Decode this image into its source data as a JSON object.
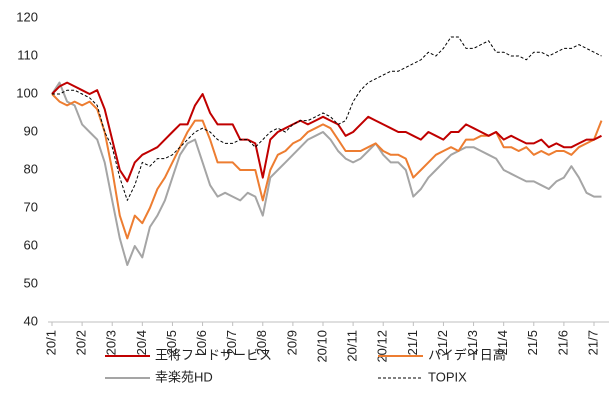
{
  "chart_data": {
    "type": "line",
    "categories": [
      "20/1",
      null,
      null,
      null,
      "20/2",
      null,
      null,
      null,
      "20/3",
      null,
      null,
      null,
      "20/4",
      null,
      null,
      null,
      "20/5",
      null,
      null,
      null,
      "20/6",
      null,
      null,
      null,
      "20/7",
      null,
      null,
      null,
      "20/8",
      null,
      null,
      null,
      "20/9",
      null,
      null,
      null,
      "20/10",
      null,
      null,
      null,
      "20/11",
      null,
      null,
      null,
      "20/12",
      null,
      null,
      null,
      "21/1",
      null,
      null,
      null,
      "21/2",
      null,
      null,
      null,
      "21/3",
      null,
      null,
      null,
      "21/4",
      null,
      null,
      null,
      "21/5",
      null,
      null,
      null,
      "21/6",
      null,
      null,
      null,
      "21/7",
      null
    ],
    "series": [
      {
        "name": "王将フードサービス",
        "color": "#c00000",
        "dash": false,
        "values": [
          100,
          102,
          103,
          102,
          101,
          100,
          101,
          96,
          88,
          80,
          77,
          82,
          84,
          85,
          86,
          88,
          90,
          92,
          92,
          97,
          100,
          95,
          92,
          92,
          92,
          88,
          88,
          87,
          78,
          88,
          90,
          91,
          92,
          93,
          92,
          93,
          94,
          93,
          92,
          89,
          90,
          92,
          94,
          93,
          92,
          91,
          90,
          90,
          89,
          88,
          90,
          89,
          88,
          90,
          90,
          92,
          91,
          90,
          89,
          90,
          88,
          89,
          88,
          87,
          87,
          88,
          86,
          87,
          86,
          86,
          87,
          88,
          88,
          89
        ]
      },
      {
        "name": "ハイデイ日高",
        "color": "#ed7d31",
        "dash": false,
        "values": [
          100,
          98,
          97,
          98,
          97,
          98,
          96,
          90,
          80,
          68,
          62,
          68,
          66,
          70,
          75,
          78,
          82,
          86,
          90,
          93,
          93,
          88,
          82,
          82,
          82,
          80,
          80,
          80,
          72,
          80,
          84,
          85,
          87,
          88,
          90,
          91,
          92,
          91,
          88,
          85,
          85,
          85,
          86,
          87,
          85,
          84,
          84,
          83,
          78,
          80,
          82,
          84,
          85,
          86,
          85,
          88,
          88,
          89,
          89,
          90,
          86,
          86,
          85,
          86,
          84,
          85,
          84,
          85,
          85,
          84,
          86,
          87,
          88,
          93
        ]
      },
      {
        "name": "幸楽苑HD",
        "color": "#a5a5a5",
        "dash": false,
        "values": [
          100,
          103,
          98,
          97,
          92,
          90,
          88,
          82,
          72,
          62,
          55,
          60,
          57,
          65,
          68,
          72,
          78,
          84,
          87,
          88,
          82,
          76,
          73,
          74,
          73,
          72,
          74,
          73,
          68,
          78,
          80,
          82,
          84,
          86,
          88,
          89,
          90,
          88,
          85,
          83,
          82,
          83,
          85,
          87,
          84,
          82,
          82,
          80,
          73,
          75,
          78,
          80,
          82,
          84,
          85,
          86,
          86,
          85,
          84,
          83,
          80,
          79,
          78,
          77,
          77,
          76,
          75,
          77,
          78,
          81,
          78,
          74,
          73,
          73
        ]
      },
      {
        "name": "TOPIX",
        "color": "#000000",
        "dash": true,
        "values": [
          100,
          100,
          101,
          101,
          100,
          99,
          97,
          90,
          86,
          78,
          72,
          76,
          82,
          81,
          83,
          83,
          84,
          86,
          88,
          90,
          91,
          90,
          88,
          87,
          87,
          88,
          88,
          86,
          88,
          90,
          91,
          90,
          92,
          93,
          93,
          94,
          95,
          94,
          92,
          93,
          98,
          101,
          103,
          104,
          105,
          106,
          106,
          107,
          108,
          109,
          111,
          110,
          112,
          115,
          115,
          112,
          112,
          113,
          114,
          111,
          111,
          110,
          110,
          109,
          111,
          111,
          110,
          111,
          112,
          112,
          113,
          112,
          111,
          110
        ]
      }
    ],
    "ylim": [
      40,
      120
    ],
    "yticks": [
      40,
      50,
      60,
      70,
      80,
      90,
      100,
      110,
      120
    ]
  }
}
